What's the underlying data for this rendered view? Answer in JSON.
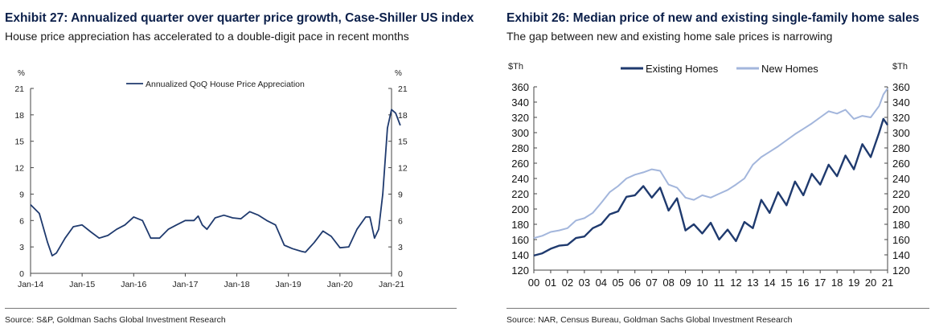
{
  "left": {
    "title": "Exhibit 27: Annualized quarter over quarter price growth, Case-Shiller US index",
    "subtitle": "House price appreciation has accelerated to a double-digit pace in recent months",
    "source": "Source: S&P, Goldman Sachs Global Investment Research",
    "colors": {
      "line": "#1f3a6e"
    }
  },
  "right": {
    "title": "Exhibit 26: Median price of new and existing single-family home sales",
    "subtitle": "The gap between new and existing home sale prices is narrowing",
    "source": "Source: NAR, Census Bureau, Goldman Sachs Global Investment Research",
    "colors": {
      "existing": "#1f3a6e",
      "new": "#a3b6dc"
    }
  },
  "chart_data": [
    {
      "type": "line",
      "ylabel_left": "%",
      "ylabel_right": "%",
      "ylim": [
        0,
        21
      ],
      "yticks": [
        0,
        3,
        6,
        9,
        12,
        15,
        18,
        21
      ],
      "xlim": [
        2014.0,
        2021.0
      ],
      "xticks": [
        {
          "label": "Jan-14",
          "x": 2014.0
        },
        {
          "label": "Jan-15",
          "x": 2015.0
        },
        {
          "label": "Jan-16",
          "x": 2016.0
        },
        {
          "label": "Jan-17",
          "x": 2017.0
        },
        {
          "label": "Jan-18",
          "x": 2018.0
        },
        {
          "label": "Jan-19",
          "x": 2019.0
        },
        {
          "label": "Jan-20",
          "x": 2020.0
        },
        {
          "label": "Jan-21",
          "x": 2021.0
        }
      ],
      "legend": "top-center",
      "series": [
        {
          "name": "Annualized QoQ House Price Appreciation",
          "points": [
            [
              2014.0,
              7.8
            ],
            [
              2014.17,
              6.8
            ],
            [
              2014.33,
              3.5
            ],
            [
              2014.42,
              2.0
            ],
            [
              2014.5,
              2.3
            ],
            [
              2014.67,
              4.0
            ],
            [
              2014.83,
              5.3
            ],
            [
              2015.0,
              5.5
            ],
            [
              2015.17,
              4.7
            ],
            [
              2015.33,
              4.0
            ],
            [
              2015.5,
              4.3
            ],
            [
              2015.67,
              5.0
            ],
            [
              2015.83,
              5.5
            ],
            [
              2016.0,
              6.4
            ],
            [
              2016.17,
              6.0
            ],
            [
              2016.33,
              4.0
            ],
            [
              2016.5,
              4.0
            ],
            [
              2016.67,
              5.0
            ],
            [
              2016.83,
              5.5
            ],
            [
              2017.0,
              6.0
            ],
            [
              2017.17,
              6.0
            ],
            [
              2017.25,
              6.5
            ],
            [
              2017.33,
              5.5
            ],
            [
              2017.42,
              5.0
            ],
            [
              2017.58,
              6.3
            ],
            [
              2017.75,
              6.6
            ],
            [
              2017.92,
              6.3
            ],
            [
              2018.08,
              6.2
            ],
            [
              2018.25,
              7.0
            ],
            [
              2018.42,
              6.6
            ],
            [
              2018.58,
              6.0
            ],
            [
              2018.75,
              5.5
            ],
            [
              2018.92,
              3.2
            ],
            [
              2019.08,
              2.8
            ],
            [
              2019.25,
              2.5
            ],
            [
              2019.33,
              2.4
            ],
            [
              2019.5,
              3.5
            ],
            [
              2019.67,
              4.8
            ],
            [
              2019.83,
              4.2
            ],
            [
              2020.0,
              2.9
            ],
            [
              2020.17,
              3.0
            ],
            [
              2020.33,
              5.0
            ],
            [
              2020.5,
              6.4
            ],
            [
              2020.58,
              6.4
            ],
            [
              2020.67,
              4.0
            ],
            [
              2020.75,
              5.0
            ],
            [
              2020.83,
              9.0
            ],
            [
              2020.92,
              16.5
            ],
            [
              2021.0,
              18.6
            ],
            [
              2021.08,
              18.2
            ],
            [
              2021.17,
              16.8
            ]
          ]
        }
      ]
    },
    {
      "type": "line",
      "ylabel_left": "$Th",
      "ylabel_right": "$Th",
      "ylim": [
        120,
        360
      ],
      "yticks": [
        120,
        140,
        160,
        180,
        200,
        220,
        240,
        260,
        280,
        300,
        320,
        340,
        360
      ],
      "xlim": [
        2000.0,
        2021.0
      ],
      "xtick_labels": [
        "00",
        "01",
        "02",
        "03",
        "04",
        "05",
        "06",
        "07",
        "08",
        "09",
        "10",
        "11",
        "12",
        "13",
        "14",
        "15",
        "16",
        "17",
        "18",
        "19",
        "20",
        "21"
      ],
      "legend": "top-center",
      "series": [
        {
          "name": "Existing Homes",
          "points": [
            [
              2000.0,
              139
            ],
            [
              2000.5,
              142
            ],
            [
              2001.0,
              148
            ],
            [
              2001.5,
              152
            ],
            [
              2002.0,
              153
            ],
            [
              2002.5,
              162
            ],
            [
              2003.0,
              164
            ],
            [
              2003.5,
              175
            ],
            [
              2004.0,
              180
            ],
            [
              2004.5,
              193
            ],
            [
              2005.0,
              197
            ],
            [
              2005.5,
              216
            ],
            [
              2006.0,
              218
            ],
            [
              2006.5,
              230
            ],
            [
              2007.0,
              215
            ],
            [
              2007.5,
              228
            ],
            [
              2008.0,
              198
            ],
            [
              2008.5,
              214
            ],
            [
              2009.0,
              172
            ],
            [
              2009.5,
              180
            ],
            [
              2010.0,
              168
            ],
            [
              2010.5,
              182
            ],
            [
              2011.0,
              160
            ],
            [
              2011.5,
              173
            ],
            [
              2012.0,
              158
            ],
            [
              2012.5,
              183
            ],
            [
              2013.0,
              175
            ],
            [
              2013.5,
              212
            ],
            [
              2014.0,
              195
            ],
            [
              2014.5,
              222
            ],
            [
              2015.0,
              205
            ],
            [
              2015.5,
              236
            ],
            [
              2016.0,
              218
            ],
            [
              2016.5,
              246
            ],
            [
              2017.0,
              232
            ],
            [
              2017.5,
              258
            ],
            [
              2018.0,
              243
            ],
            [
              2018.5,
              270
            ],
            [
              2019.0,
              252
            ],
            [
              2019.5,
              285
            ],
            [
              2020.0,
              268
            ],
            [
              2020.5,
              300
            ],
            [
              2020.75,
              318
            ],
            [
              2021.0,
              310
            ]
          ]
        },
        {
          "name": "New Homes",
          "points": [
            [
              2000.0,
              162
            ],
            [
              2000.5,
              165
            ],
            [
              2001.0,
              170
            ],
            [
              2001.5,
              172
            ],
            [
              2002.0,
              175
            ],
            [
              2002.5,
              185
            ],
            [
              2003.0,
              188
            ],
            [
              2003.5,
              195
            ],
            [
              2004.0,
              208
            ],
            [
              2004.5,
              222
            ],
            [
              2005.0,
              230
            ],
            [
              2005.5,
              240
            ],
            [
              2006.0,
              245
            ],
            [
              2006.5,
              248
            ],
            [
              2007.0,
              252
            ],
            [
              2007.5,
              250
            ],
            [
              2008.0,
              232
            ],
            [
              2008.5,
              228
            ],
            [
              2009.0,
              215
            ],
            [
              2009.5,
              212
            ],
            [
              2010.0,
              218
            ],
            [
              2010.5,
              215
            ],
            [
              2011.0,
              220
            ],
            [
              2011.5,
              225
            ],
            [
              2012.0,
              232
            ],
            [
              2012.5,
              240
            ],
            [
              2013.0,
              258
            ],
            [
              2013.5,
              268
            ],
            [
              2014.0,
              275
            ],
            [
              2014.5,
              282
            ],
            [
              2015.0,
              290
            ],
            [
              2015.5,
              298
            ],
            [
              2016.0,
              305
            ],
            [
              2016.5,
              312
            ],
            [
              2017.0,
              320
            ],
            [
              2017.5,
              328
            ],
            [
              2018.0,
              325
            ],
            [
              2018.5,
              330
            ],
            [
              2019.0,
              318
            ],
            [
              2019.5,
              322
            ],
            [
              2020.0,
              320
            ],
            [
              2020.5,
              335
            ],
            [
              2020.75,
              350
            ],
            [
              2021.0,
              358
            ]
          ]
        }
      ]
    }
  ]
}
